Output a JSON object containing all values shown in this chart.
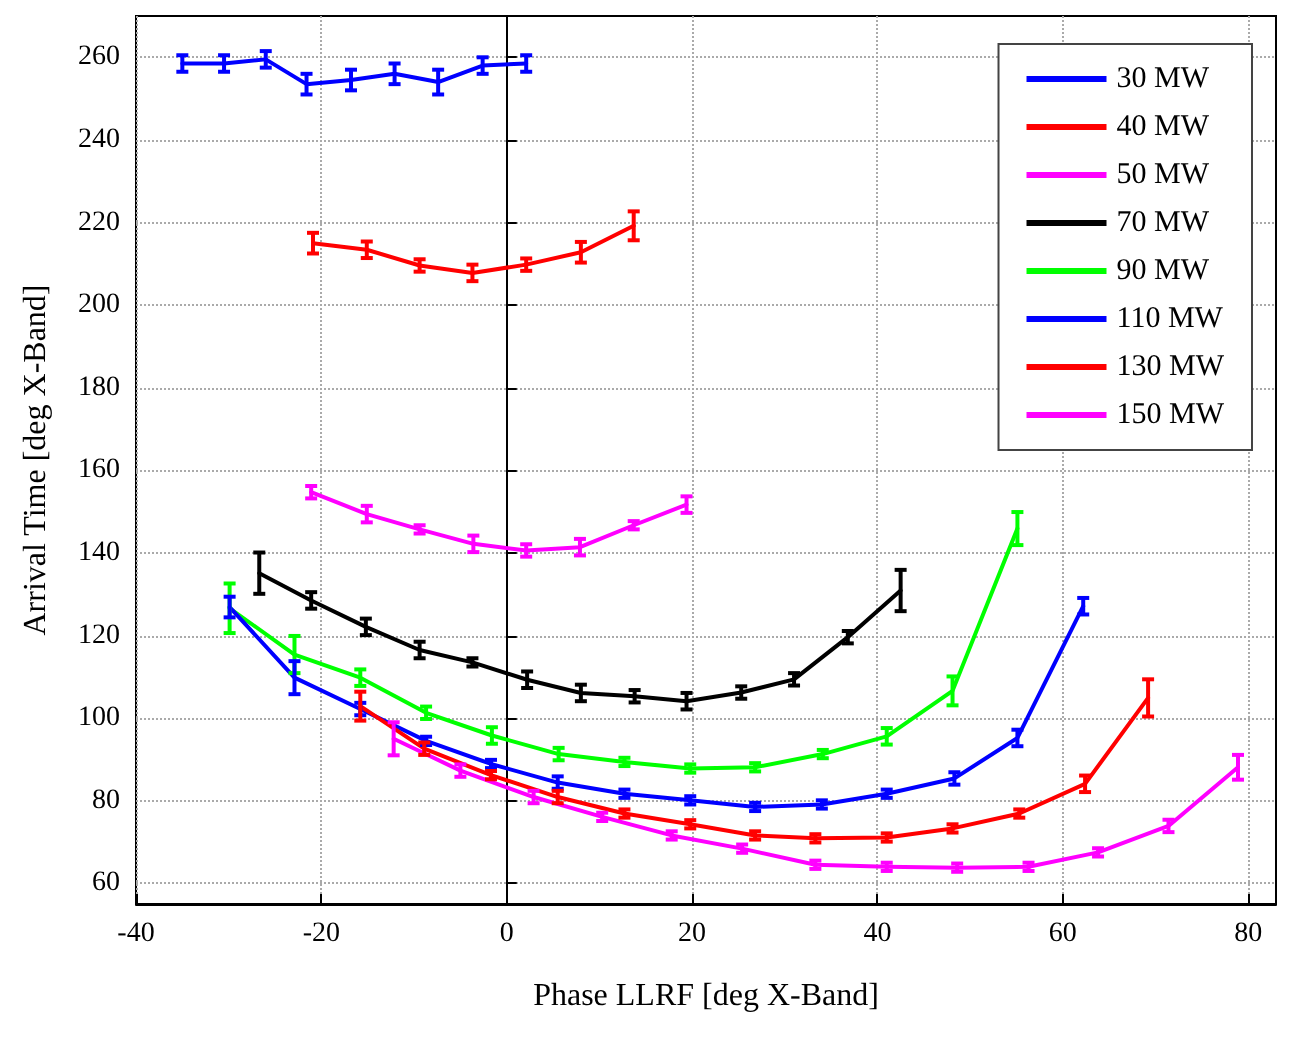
{
  "chart_data": {
    "type": "line",
    "xlabel": "Phase LLRF [deg X-Band]",
    "ylabel": "Arrival Time [deg X-Band]",
    "xlim": [
      -40,
      83
    ],
    "xticks": [
      -40,
      -20,
      0,
      20,
      40,
      60,
      80
    ],
    "ylim": [
      55,
      270
    ],
    "yticks": [
      60,
      80,
      100,
      120,
      140,
      160,
      180,
      200,
      220,
      240,
      260
    ],
    "grid": true,
    "legend": "top right",
    "marker": "none",
    "line_style": "solid",
    "series": [
      {
        "name": "30 MW",
        "color": "#0000ff",
        "x": [
          -35,
          -30.5,
          -26,
          -21.6,
          -16.8,
          -12.1,
          -7.4,
          -2.6,
          2.1
        ],
        "values": [
          258.5,
          258.5,
          259.5,
          253.5,
          254.5,
          256,
          254,
          258,
          258.5
        ],
        "errors": [
          2,
          2,
          2,
          2.5,
          2.5,
          2.5,
          3,
          2,
          2
        ]
      },
      {
        "name": "40 MW",
        "color": "#ff0000",
        "x": [
          -20.9,
          -15.1,
          -9.4,
          -3.7,
          2.1,
          8,
          13.7
        ],
        "values": [
          215,
          213.4,
          209.6,
          207.8,
          209.8,
          212.8,
          219.2
        ],
        "errors": [
          2.5,
          2,
          1.5,
          2,
          1.5,
          2.5,
          3.5
        ]
      },
      {
        "name": "50 MW",
        "color": "#ff00ff",
        "x": [
          -21.1,
          -15.1,
          -9.4,
          -3.6,
          2.1,
          7.9,
          13.7,
          19.4
        ],
        "values": [
          154.7,
          149.4,
          145.7,
          142.2,
          140.6,
          141.4,
          146.7,
          151.7
        ],
        "errors": [
          1.5,
          2,
          1,
          2,
          1.5,
          2,
          1,
          2
        ]
      },
      {
        "name": "70 MW",
        "color": "#000000",
        "x": [
          -26.7,
          -21.1,
          -15.2,
          -9.4,
          -3.7,
          2.2,
          8,
          13.8,
          19.4,
          25.3,
          31,
          36.8,
          42.5
        ],
        "values": [
          135.1,
          128.5,
          122.1,
          116.5,
          113.5,
          109.3,
          106.1,
          105.3,
          104.1,
          106.2,
          109.4,
          119.6,
          130.9
        ],
        "errors": [
          5,
          2,
          2,
          2,
          1,
          2,
          2,
          1.5,
          2,
          1.5,
          1.5,
          1.5,
          5
        ]
      },
      {
        "name": "90 MW",
        "color": "#00ff00",
        "x": [
          -29.9,
          -22.9,
          -15.8,
          -8.7,
          -1.6,
          5.6,
          12.7,
          19.8,
          26.8,
          34.1,
          41,
          48.1,
          55.1
        ],
        "values": [
          126.6,
          115.4,
          109.8,
          101.3,
          95.8,
          91.3,
          89.4,
          87.8,
          88.1,
          91.3,
          95.6,
          106.6,
          145.9
        ],
        "errors": [
          6,
          4.5,
          2,
          1.5,
          2,
          1.5,
          1,
          1,
          1,
          1,
          2,
          3.5,
          4
        ]
      },
      {
        "name": "110 MW",
        "color": "#0000ff",
        "x": [
          -29.9,
          -22.9,
          -15.8,
          -8.7,
          -1.7,
          5.5,
          12.7,
          19.8,
          26.8,
          34,
          41,
          48.3,
          55.1,
          62.2
        ],
        "values": [
          126.9,
          109.8,
          102.2,
          94.5,
          88.9,
          84.4,
          81.7,
          80.1,
          78.5,
          79.1,
          81.7,
          85.4,
          95.2,
          127.1
        ],
        "errors": [
          2.5,
          4,
          1.5,
          1,
          1,
          1.5,
          1,
          1,
          1,
          1,
          1,
          1.5,
          2,
          2
        ]
      },
      {
        "name": "130 MW",
        "color": "#ff0000",
        "x": [
          -15.8,
          -8.9,
          -1.7,
          5.5,
          12.7,
          19.8,
          26.8,
          33.3,
          41,
          48.1,
          55.3,
          62.4,
          69.2
        ],
        "values": [
          102.9,
          92.6,
          86.2,
          80.9,
          76.9,
          74.3,
          71.6,
          70.9,
          71.1,
          73.3,
          76.9,
          84.1,
          104.9
        ],
        "errors": [
          3.5,
          1.5,
          1,
          1.5,
          1,
          1,
          1,
          1,
          1,
          1,
          1,
          2,
          4.5
        ]
      },
      {
        "name": "150 MW",
        "color": "#ff00ff",
        "x": [
          -12.2,
          -5,
          2.9,
          10.3,
          17.8,
          25.4,
          33.3,
          41,
          48.6,
          56.3,
          63.8,
          71.4,
          78.9
        ],
        "values": [
          95,
          87.3,
          80.9,
          76.1,
          71.6,
          68.4,
          64.5,
          64,
          63.8,
          64,
          67.5,
          73.9,
          88.1
        ],
        "errors": [
          4,
          1.5,
          1.5,
          1,
          1,
          1,
          1,
          1,
          1,
          1,
          1,
          1.5,
          3
        ]
      }
    ]
  }
}
